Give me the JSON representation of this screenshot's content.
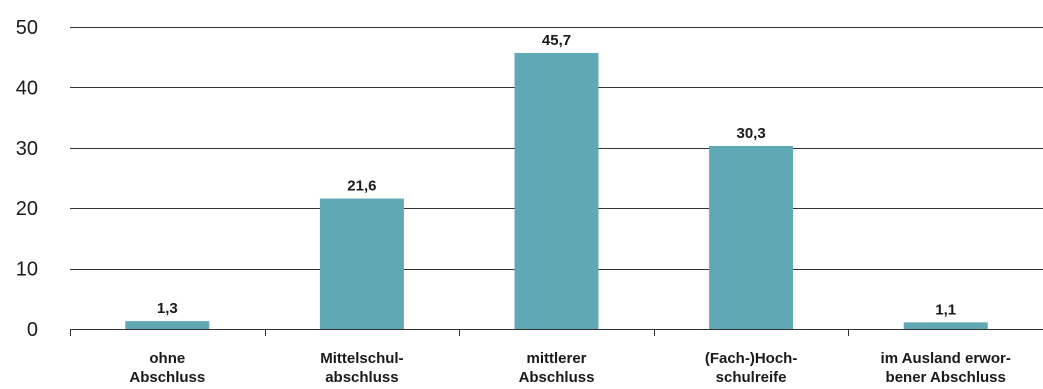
{
  "chart_data": {
    "type": "bar",
    "categories": [
      [
        "ohne",
        "Abschluss"
      ],
      [
        "Mittelschul-",
        "abschluss"
      ],
      [
        "mittlerer",
        "Abschluss"
      ],
      [
        "(Fach-)Hoch-",
        "schulreife"
      ],
      [
        "im Ausland erwor-",
        "bener Abschluss"
      ]
    ],
    "values": [
      1.3,
      21.6,
      45.7,
      30.3,
      1.1
    ],
    "value_labels": [
      "1,3",
      "21,6",
      "45,7",
      "30,3",
      "1,1"
    ],
    "yticks": [
      "0",
      "10",
      "20",
      "30",
      "40",
      "50"
    ],
    "ylim": [
      0,
      50
    ],
    "grid": true,
    "bar_color": "#5fa8b4",
    "grid_color": "#333333"
  }
}
